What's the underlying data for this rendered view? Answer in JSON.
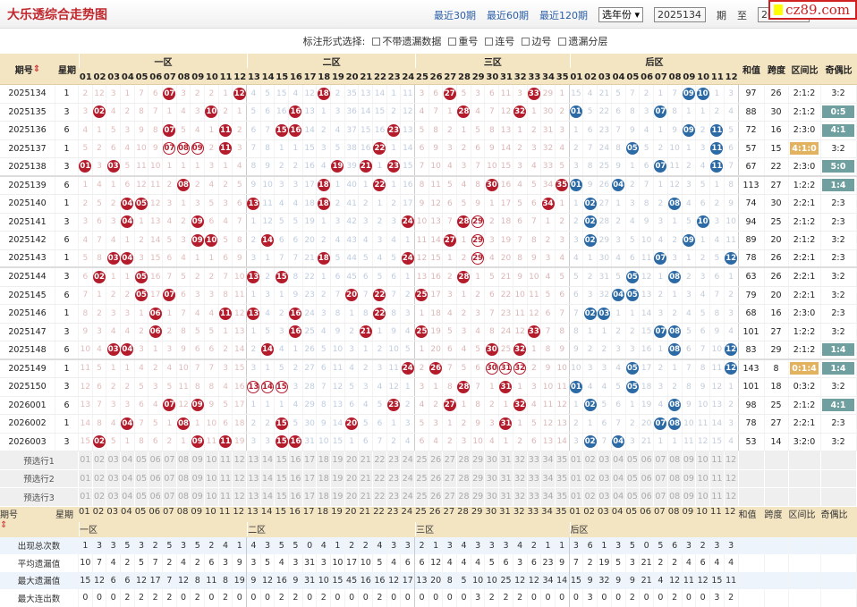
{
  "header": {
    "title": "大乐透综合走势图",
    "links": [
      "最近30期",
      "最近60期",
      "最近120期"
    ],
    "year_select": "选年份",
    "from_issue": "2025134",
    "period_label": "期",
    "to_label": "至",
    "to_issue": "202",
    "logo": "cz89.com"
  },
  "options": {
    "label": "标注形式选择:",
    "items": [
      "不带遗漏数据",
      "重号",
      "连号",
      "边号",
      "遗漏分层"
    ]
  },
  "columns": {
    "issue": "期号",
    "weekday": "星期",
    "zones": [
      "一区",
      "二区",
      "三区",
      "后区"
    ],
    "sum": "和值",
    "span": "跨度",
    "zone_ratio": "区间比",
    "odd_even": "奇偶比"
  },
  "colors": {
    "front_ball": "#b41c2c",
    "back_ball": "#2c6aa6",
    "odd_even_highlight": "#6f9f9f",
    "zone_ratio_highlight": "#e2b25e",
    "header_bg": "#f3e4c2"
  },
  "rows": [
    {
      "issue": "2025134",
      "week": "1",
      "front": [
        2,
        12,
        3,
        1,
        7,
        6,
        "07",
        3,
        2,
        2,
        1,
        "12",
        4,
        5,
        15,
        4,
        12,
        "18",
        2,
        35,
        13,
        14,
        1,
        11,
        3,
        6,
        "27",
        5,
        3,
        6,
        11,
        3,
        "33",
        29,
        1
      ],
      "back": [
        15,
        4,
        21,
        5,
        7,
        2,
        1,
        7,
        "09",
        "10",
        1,
        3
      ],
      "sum": "97",
      "span": "26",
      "zone": "2:1:2",
      "oe": "3:2"
    },
    {
      "issue": "2025135",
      "week": "3",
      "front": [
        3,
        "02",
        4,
        2,
        8,
        7,
        1,
        4,
        3,
        "10",
        2,
        1,
        5,
        6,
        16,
        "16",
        13,
        1,
        3,
        36,
        14,
        15,
        2,
        12,
        4,
        7,
        1,
        "28",
        4,
        7,
        12,
        "32",
        1,
        30,
        2
      ],
      "back": [
        "01",
        5,
        22,
        6,
        8,
        3,
        "07",
        8,
        1,
        1,
        2,
        4
      ],
      "sum": "88",
      "span": "30",
      "zone": "2:1:2",
      "oe": "0:5",
      "oe_hl": true
    },
    {
      "issue": "2025136",
      "week": "6",
      "front": [
        4,
        1,
        5,
        3,
        9,
        8,
        "07",
        5,
        4,
        1,
        "11",
        2,
        6,
        7,
        "15",
        "16",
        14,
        2,
        4,
        37,
        15,
        16,
        "23",
        13,
        5,
        8,
        2,
        1,
        5,
        8,
        13,
        1,
        2,
        31,
        3
      ],
      "back": [
        1,
        6,
        23,
        7,
        9,
        4,
        1,
        9,
        "09",
        2,
        "11",
        5
      ],
      "sum": "72",
      "span": "16",
      "zone": "2:3:0",
      "oe": "4:1",
      "oe_hl": true
    },
    {
      "issue": "2025137",
      "week": "1",
      "front": [
        5,
        2,
        6,
        4,
        10,
        9,
        "07",
        "08",
        "09",
        2,
        "11",
        3,
        7,
        8,
        1,
        1,
        15,
        3,
        5,
        38,
        16,
        "22",
        1,
        14,
        6,
        9,
        3,
        2,
        6,
        9,
        14,
        2,
        3,
        32,
        4
      ],
      "back": [
        2,
        7,
        24,
        8,
        "05",
        5,
        2,
        10,
        1,
        3,
        "11",
        6
      ],
      "sum": "57",
      "span": "15",
      "zone": "4:1:0",
      "zone_hl": true,
      "oe": "3:2",
      "hollow": [
        "07",
        "08",
        "09"
      ]
    },
    {
      "issue": "2025138",
      "week": "3",
      "front": [
        "01",
        3,
        "03",
        5,
        11,
        10,
        1,
        1,
        1,
        3,
        1,
        4,
        8,
        9,
        2,
        2,
        16,
        4,
        "19",
        39,
        "21",
        1,
        "23",
        15,
        7,
        10,
        4,
        3,
        7,
        10,
        15,
        3,
        4,
        33,
        5
      ],
      "back": [
        3,
        8,
        25,
        9,
        1,
        6,
        "07",
        11,
        2,
        4,
        "11",
        7
      ],
      "sum": "67",
      "span": "22",
      "zone": "2:3:0",
      "oe": "5:0",
      "oe_hl": true
    },
    {
      "issue": "2025139",
      "week": "6",
      "front": [
        1,
        4,
        1,
        6,
        12,
        11,
        2,
        "08",
        2,
        4,
        2,
        5,
        9,
        10,
        3,
        3,
        17,
        "18",
        1,
        40,
        1,
        "22",
        1,
        16,
        8,
        11,
        5,
        4,
        8,
        "30",
        16,
        4,
        5,
        34,
        "35"
      ],
      "back": [
        "01",
        9,
        26,
        "04",
        2,
        7,
        1,
        12,
        3,
        5,
        1,
        8
      ],
      "sum": "113",
      "span": "27",
      "zone": "1:2:2",
      "oe": "1:4",
      "oe_hl": true
    },
    {
      "issue": "2025140",
      "week": "1",
      "front": [
        2,
        5,
        2,
        "04",
        "05",
        12,
        3,
        1,
        3,
        5,
        3,
        6,
        "13",
        11,
        4,
        4,
        18,
        "18",
        2,
        41,
        2,
        1,
        2,
        17,
        9,
        12,
        6,
        5,
        9,
        1,
        17,
        5,
        6,
        "34",
        1
      ],
      "back": [
        1,
        "02",
        27,
        1,
        3,
        8,
        2,
        "08",
        4,
        6,
        2,
        9
      ],
      "sum": "74",
      "span": "30",
      "zone": "2:2:1",
      "oe": "2:3"
    },
    {
      "issue": "2025141",
      "week": "3",
      "front": [
        3,
        6,
        3,
        "04",
        1,
        13,
        4,
        2,
        "09",
        6,
        4,
        7,
        1,
        12,
        5,
        5,
        19,
        1,
        3,
        42,
        3,
        2,
        3,
        "24",
        10,
        13,
        7,
        "28",
        "29",
        2,
        18,
        6,
        7,
        1,
        2
      ],
      "back": [
        2,
        "02",
        28,
        2,
        4,
        9,
        3,
        1,
        5,
        "10",
        3,
        10
      ],
      "sum": "94",
      "span": "25",
      "zone": "2:1:2",
      "oe": "2:3",
      "hollow": [
        "29"
      ]
    },
    {
      "issue": "2025142",
      "week": "6",
      "front": [
        4,
        7,
        4,
        1,
        2,
        14,
        5,
        3,
        "09",
        "10",
        5,
        8,
        2,
        "14",
        6,
        6,
        20,
        2,
        4,
        43,
        4,
        3,
        4,
        1,
        11,
        14,
        "27",
        1,
        "29",
        3,
        19,
        7,
        8,
        2,
        3
      ],
      "back": [
        3,
        "02",
        29,
        3,
        5,
        10,
        4,
        2,
        "09",
        1,
        4,
        11
      ],
      "sum": "89",
      "span": "20",
      "zone": "2:1:2",
      "oe": "3:2",
      "hollow": [
        "29"
      ]
    },
    {
      "issue": "2025143",
      "week": "1",
      "front": [
        5,
        8,
        "03",
        "04",
        3,
        15,
        6,
        4,
        1,
        1,
        6,
        9,
        3,
        1,
        7,
        7,
        21,
        "18",
        5,
        44,
        5,
        4,
        5,
        "24",
        12,
        15,
        1,
        2,
        "29",
        4,
        20,
        8,
        9,
        3,
        4
      ],
      "back": [
        4,
        1,
        30,
        4,
        6,
        11,
        "07",
        3,
        1,
        2,
        5,
        "12"
      ],
      "sum": "78",
      "span": "26",
      "zone": "2:2:1",
      "oe": "2:3",
      "hollow": [
        "29"
      ]
    },
    {
      "issue": "2025144",
      "week": "3",
      "front": [
        6,
        "02",
        1,
        1,
        "05",
        16,
        7,
        5,
        2,
        2,
        7,
        10,
        "13",
        2,
        "15",
        8,
        22,
        1,
        6,
        45,
        6,
        5,
        6,
        1,
        13,
        16,
        2,
        "28",
        1,
        5,
        21,
        9,
        10,
        4,
        5
      ],
      "back": [
        5,
        2,
        31,
        5,
        "05",
        12,
        1,
        "08",
        2,
        3,
        6,
        1
      ],
      "sum": "63",
      "span": "26",
      "zone": "2:2:1",
      "oe": "3:2"
    },
    {
      "issue": "2025145",
      "week": "6",
      "front": [
        7,
        1,
        2,
        2,
        "05",
        17,
        "07",
        6,
        3,
        3,
        8,
        11,
        1,
        3,
        1,
        9,
        23,
        2,
        7,
        "20",
        7,
        "22",
        7,
        2,
        "25",
        17,
        3,
        1,
        2,
        6,
        22,
        10,
        11,
        5,
        6
      ],
      "back": [
        6,
        3,
        32,
        "04",
        "05",
        13,
        2,
        1,
        3,
        4,
        7,
        2
      ],
      "sum": "79",
      "span": "20",
      "zone": "2:2:1",
      "oe": "3:2"
    },
    {
      "issue": "2025146",
      "week": "1",
      "front": [
        8,
        2,
        3,
        3,
        1,
        "06",
        1,
        7,
        4,
        4,
        "11",
        12,
        "13",
        4,
        2,
        "16",
        24,
        3,
        8,
        1,
        8,
        "22",
        8,
        3,
        1,
        18,
        4,
        2,
        3,
        7,
        23,
        11,
        12,
        6,
        7
      ],
      "back": [
        7,
        "02",
        "03",
        1,
        1,
        14,
        3,
        2,
        4,
        5,
        8,
        3
      ],
      "sum": "68",
      "span": "16",
      "zone": "2:3:0",
      "oe": "2:3"
    },
    {
      "issue": "2025147",
      "week": "3",
      "front": [
        9,
        3,
        4,
        4,
        2,
        "06",
        2,
        8,
        5,
        5,
        1,
        13,
        1,
        5,
        3,
        "16",
        25,
        4,
        9,
        2,
        "21",
        1,
        9,
        4,
        "25",
        19,
        5,
        3,
        4,
        8,
        24,
        12,
        "33",
        7,
        8
      ],
      "back": [
        8,
        1,
        1,
        2,
        2,
        15,
        "07",
        "08",
        5,
        6,
        9,
        4
      ],
      "sum": "101",
      "span": "27",
      "zone": "1:2:2",
      "oe": "3:2"
    },
    {
      "issue": "2025148",
      "week": "6",
      "front": [
        10,
        4,
        "03",
        "04",
        3,
        1,
        3,
        9,
        6,
        6,
        2,
        14,
        2,
        "14",
        4,
        1,
        26,
        5,
        10,
        3,
        1,
        2,
        10,
        5,
        1,
        20,
        6,
        4,
        5,
        "30",
        25,
        "32",
        1,
        8,
        9
      ],
      "back": [
        9,
        2,
        2,
        3,
        3,
        16,
        1,
        "08",
        6,
        7,
        10,
        "12"
      ],
      "sum": "83",
      "span": "29",
      "zone": "2:1:2",
      "oe": "1:4",
      "oe_hl": true
    },
    {
      "issue": "2025149",
      "week": "1",
      "front": [
        11,
        5,
        1,
        1,
        4,
        2,
        4,
        10,
        7,
        7,
        3,
        15,
        3,
        1,
        5,
        2,
        27,
        6,
        11,
        4,
        2,
        3,
        11,
        "24",
        2,
        "26",
        7,
        5,
        6,
        "30",
        "31",
        "32",
        2,
        9,
        10
      ],
      "back": [
        10,
        3,
        3,
        4,
        "05",
        17,
        2,
        1,
        7,
        8,
        11,
        "12"
      ],
      "sum": "143",
      "span": "8",
      "zone": "0:1:4",
      "zone_hl": true,
      "oe": "1:4",
      "oe_hl": true,
      "hollow": [
        "30",
        "31",
        "32"
      ]
    },
    {
      "issue": "2025150",
      "week": "3",
      "front": [
        12,
        6,
        2,
        2,
        5,
        3,
        5,
        11,
        8,
        8,
        4,
        16,
        "13",
        "14",
        "15",
        3,
        28,
        7,
        12,
        5,
        3,
        4,
        12,
        1,
        3,
        1,
        8,
        "28",
        7,
        1,
        "31",
        1,
        3,
        10,
        11
      ],
      "back": [
        "01",
        4,
        4,
        5,
        "05",
        18,
        3,
        2,
        8,
        9,
        12,
        1
      ],
      "sum": "101",
      "span": "18",
      "zone": "0:3:2",
      "oe": "3:2",
      "hollow": [
        "13",
        "14",
        "15"
      ]
    },
    {
      "issue": "2026001",
      "week": "6",
      "front": [
        13,
        7,
        3,
        3,
        6,
        4,
        "07",
        12,
        "09",
        9,
        5,
        17,
        1,
        1,
        1,
        4,
        29,
        8,
        13,
        6,
        4,
        5,
        "23",
        2,
        4,
        2,
        "27",
        1,
        8,
        2,
        1,
        "32",
        4,
        11,
        12
      ],
      "back": [
        1,
        "02",
        5,
        6,
        1,
        19,
        4,
        "08",
        9,
        10,
        13,
        2
      ],
      "sum": "98",
      "span": "25",
      "zone": "2:1:2",
      "oe": "4:1",
      "oe_hl": true
    },
    {
      "issue": "2026002",
      "week": "1",
      "front": [
        14,
        8,
        4,
        "04",
        7,
        5,
        1,
        "08",
        1,
        10,
        6,
        18,
        2,
        2,
        "15",
        5,
        30,
        9,
        14,
        "20",
        5,
        6,
        1,
        3,
        5,
        3,
        1,
        2,
        9,
        3,
        "31",
        1,
        5,
        12,
        13
      ],
      "back": [
        2,
        1,
        6,
        7,
        2,
        20,
        "07",
        "08",
        10,
        11,
        14,
        3
      ],
      "sum": "78",
      "span": "27",
      "zone": "2:2:1",
      "oe": "2:3"
    },
    {
      "issue": "2026003",
      "week": "3",
      "front": [
        15,
        "02",
        5,
        1,
        8,
        6,
        2,
        1,
        "09",
        11,
        "11",
        19,
        3,
        3,
        "15",
        "16",
        31,
        10,
        15,
        1,
        6,
        7,
        2,
        4,
        6,
        4,
        2,
        3,
        10,
        4,
        1,
        2,
        6,
        13,
        14
      ],
      "back": [
        3,
        "02",
        7,
        "04",
        3,
        21,
        1,
        1,
        11,
        12,
        15,
        4
      ],
      "sum": "53",
      "span": "14",
      "zone": "3:2:0",
      "oe": "3:2"
    }
  ],
  "preselect": [
    "预选行1",
    "预选行2",
    "预选行3"
  ],
  "stats": [
    {
      "label": "出现总次数",
      "front": [
        1,
        3,
        3,
        5,
        3,
        2,
        5,
        3,
        5,
        2,
        4,
        1,
        4,
        3,
        5,
        5,
        0,
        4,
        1,
        2,
        2,
        4,
        3,
        3,
        2,
        1,
        3,
        4,
        3,
        3,
        3,
        4,
        2,
        1,
        1
      ],
      "back": [
        3,
        6,
        1,
        3,
        5,
        0,
        5,
        6,
        3,
        2,
        3,
        3
      ]
    },
    {
      "label": "平均遗漏值",
      "front": [
        10,
        7,
        4,
        2,
        5,
        7,
        2,
        4,
        2,
        6,
        3,
        9,
        3,
        5,
        4,
        3,
        31,
        3,
        10,
        17,
        10,
        5,
        4,
        6,
        6,
        12,
        4,
        4,
        4,
        5,
        6,
        3,
        6,
        23,
        9
      ],
      "back": [
        7,
        2,
        19,
        5,
        3,
        21,
        2,
        2,
        4,
        6,
        4,
        4
      ]
    },
    {
      "label": "最大遗漏值",
      "front": [
        15,
        12,
        6,
        6,
        12,
        17,
        7,
        12,
        8,
        11,
        8,
        19,
        9,
        12,
        16,
        9,
        31,
        10,
        15,
        45,
        16,
        16,
        12,
        17,
        13,
        20,
        8,
        5,
        10,
        10,
        25,
        12,
        12,
        34,
        14
      ],
      "back": [
        15,
        9,
        32,
        9,
        9,
        21,
        4,
        12,
        11,
        12,
        15,
        11
      ]
    },
    {
      "label": "最大连出数",
      "front": [
        0,
        0,
        0,
        2,
        2,
        2,
        2,
        0,
        2,
        0,
        2,
        0,
        0,
        0,
        2,
        2,
        0,
        2,
        0,
        0,
        0,
        2,
        0,
        0,
        0,
        0,
        0,
        0,
        3,
        2,
        2,
        2,
        0,
        0,
        0
      ],
      "back": [
        0,
        3,
        0,
        0,
        2,
        0,
        0,
        2,
        0,
        0,
        3,
        2
      ]
    }
  ]
}
